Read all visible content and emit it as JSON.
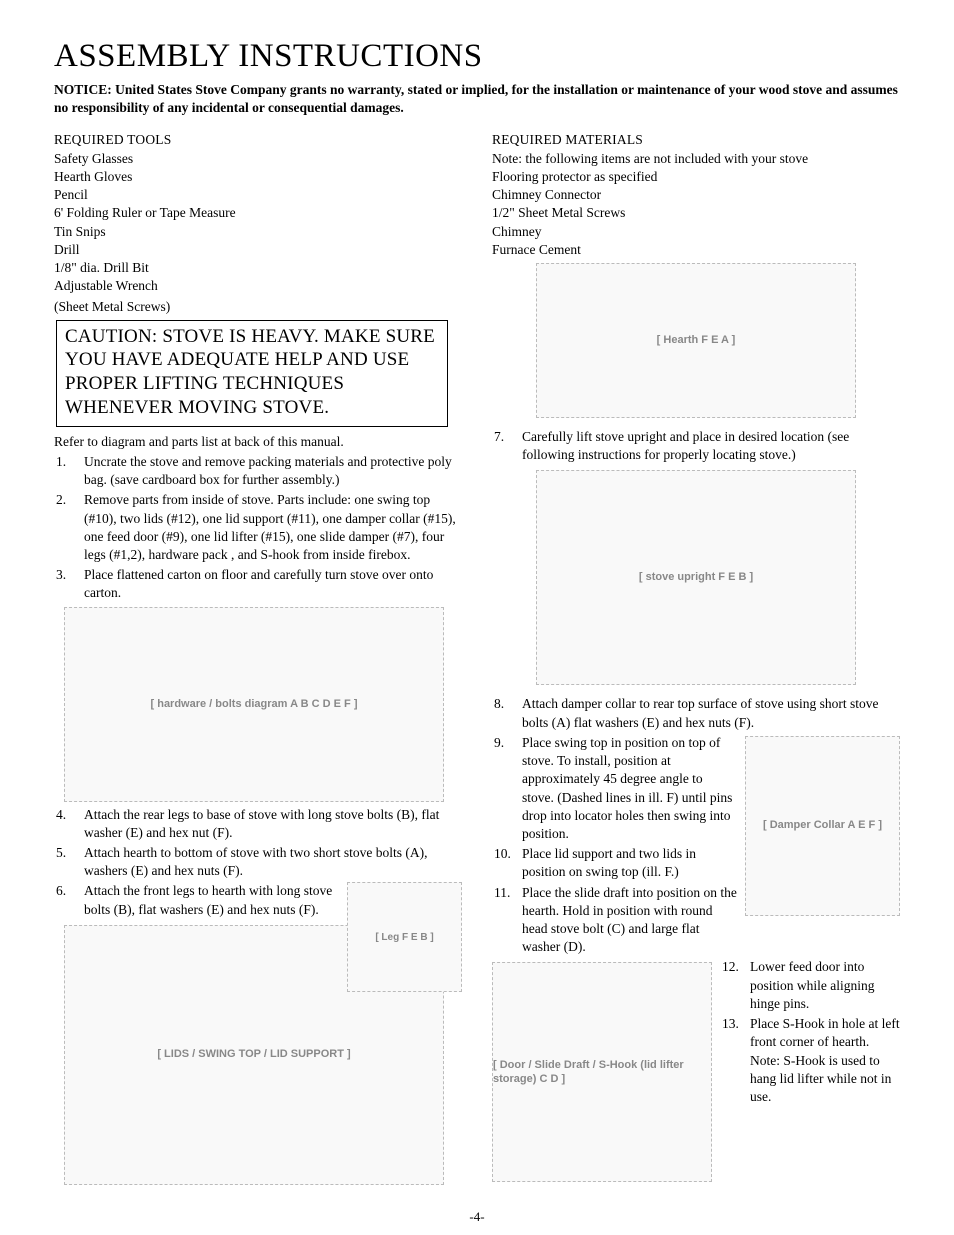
{
  "title": "ASSEMBLY INSTRUCTIONS",
  "notice": "NOTICE: United States Stove  Company grants no warranty, stated or implied, for the installation or maintenance of  your wood stove and assumes no responsibility of any incidental or consequential damages.",
  "tools": {
    "heading": "REQUIRED TOOLS",
    "items": [
      "Safety Glasses",
      "Hearth Gloves",
      "Pencil",
      "6' Folding Ruler or Tape Measure",
      "Tin Snips",
      "Drill",
      "1/8\" dia. Drill Bit",
      "Adjustable Wrench"
    ],
    "paren": "(Sheet Metal Screws)"
  },
  "materials": {
    "heading": "REQUIRED MATERIALS",
    "note": "Note: the following items are not included with your stove",
    "items": [
      "Flooring protector as specified",
      "Chimney Connector",
      "1/2\" Sheet Metal Screws",
      "Chimney",
      "Furnace Cement"
    ]
  },
  "caution": "CAUTION: STOVE IS HEAVY. MAKE SURE YOU HAVE ADEQUATE HELP AND USE PROPER LIFTING TECHNIQUES WHENEVER MOVING STOVE.",
  "refer": "Refer to diagram and parts list at back of this manual.",
  "steps_left_a": [
    {
      "n": "1.",
      "t": "Uncrate the stove and remove packing materials and protective poly bag. (save cardboard box for further assembly.)"
    },
    {
      "n": "2.",
      "t": "Remove parts from inside of stove. Parts include: one swing top (#10), two lids (#12), one lid support (#11), one damper collar (#15), one feed door (#9), one lid lifter (#15), one slide damper (#7), four legs (#1,2), hardware pack , and S-hook from inside firebox."
    },
    {
      "n": "3.",
      "t": "Place flattened carton on floor and carefully turn stove over onto carton."
    }
  ],
  "steps_left_b": [
    {
      "n": "4.",
      "t": "Attach the rear legs to base of stove with long stove bolts (B), flat washer (E) and hex nut (F)."
    },
    {
      "n": "5.",
      "t": "Attach hearth to bottom of stove with two short stove bolts (A), washers (E) and hex nuts (F)."
    },
    {
      "n": "6.",
      "t": "Attach the front legs to hearth with long stove bolts (B), flat washers (E) and hex nuts (F)."
    }
  ],
  "steps_right_a": [
    {
      "n": "7.",
      "t": "Carefully lift stove upright and place in desired location (see following instructions for properly locating stove.)"
    }
  ],
  "steps_right_b": [
    {
      "n": "8.",
      "t": "Attach damper collar to rear top surface of stove using short stove bolts (A) flat washers (E) and hex nuts (F)."
    },
    {
      "n": "9.",
      "t": "Place swing top in position on top of stove. To install, position at approximately 45 degree angle to stove. (Dashed lines in ill. F) until pins drop into locator holes then swing into position."
    },
    {
      "n": "10.",
      "t": "Place lid support and two lids in position on swing top (ill. F.)"
    },
    {
      "n": "11.",
      "t": "Place the slide draft into position on the hearth. Hold in position with round head stove bolt (C) and large flat washer (D)."
    }
  ],
  "steps_right_c": [
    {
      "n": "12.",
      "t": "Lower feed door into position while aligning hinge pins."
    },
    {
      "n": "13.",
      "t": "Place S-Hook in hole at left front corner of hearth. Note: S-Hook is used to hang lid lifter while not in use."
    }
  ],
  "diagrams": {
    "hardware": "[ hardware / bolts diagram  A B C D E F ]",
    "leg": "[ Leg  F E  B ]",
    "swingtop": "[ LIDS / SWING TOP / LID SUPPORT ]",
    "hearth": "[ Hearth  F E  A ]",
    "upright": "[ stove upright  F E  B ]",
    "damper": "[ Damper Collar  A  E F ]",
    "door": "[ Door / Slide Draft / S-Hook (lid lifter storage)  C D ]"
  },
  "page_number": "-4-"
}
